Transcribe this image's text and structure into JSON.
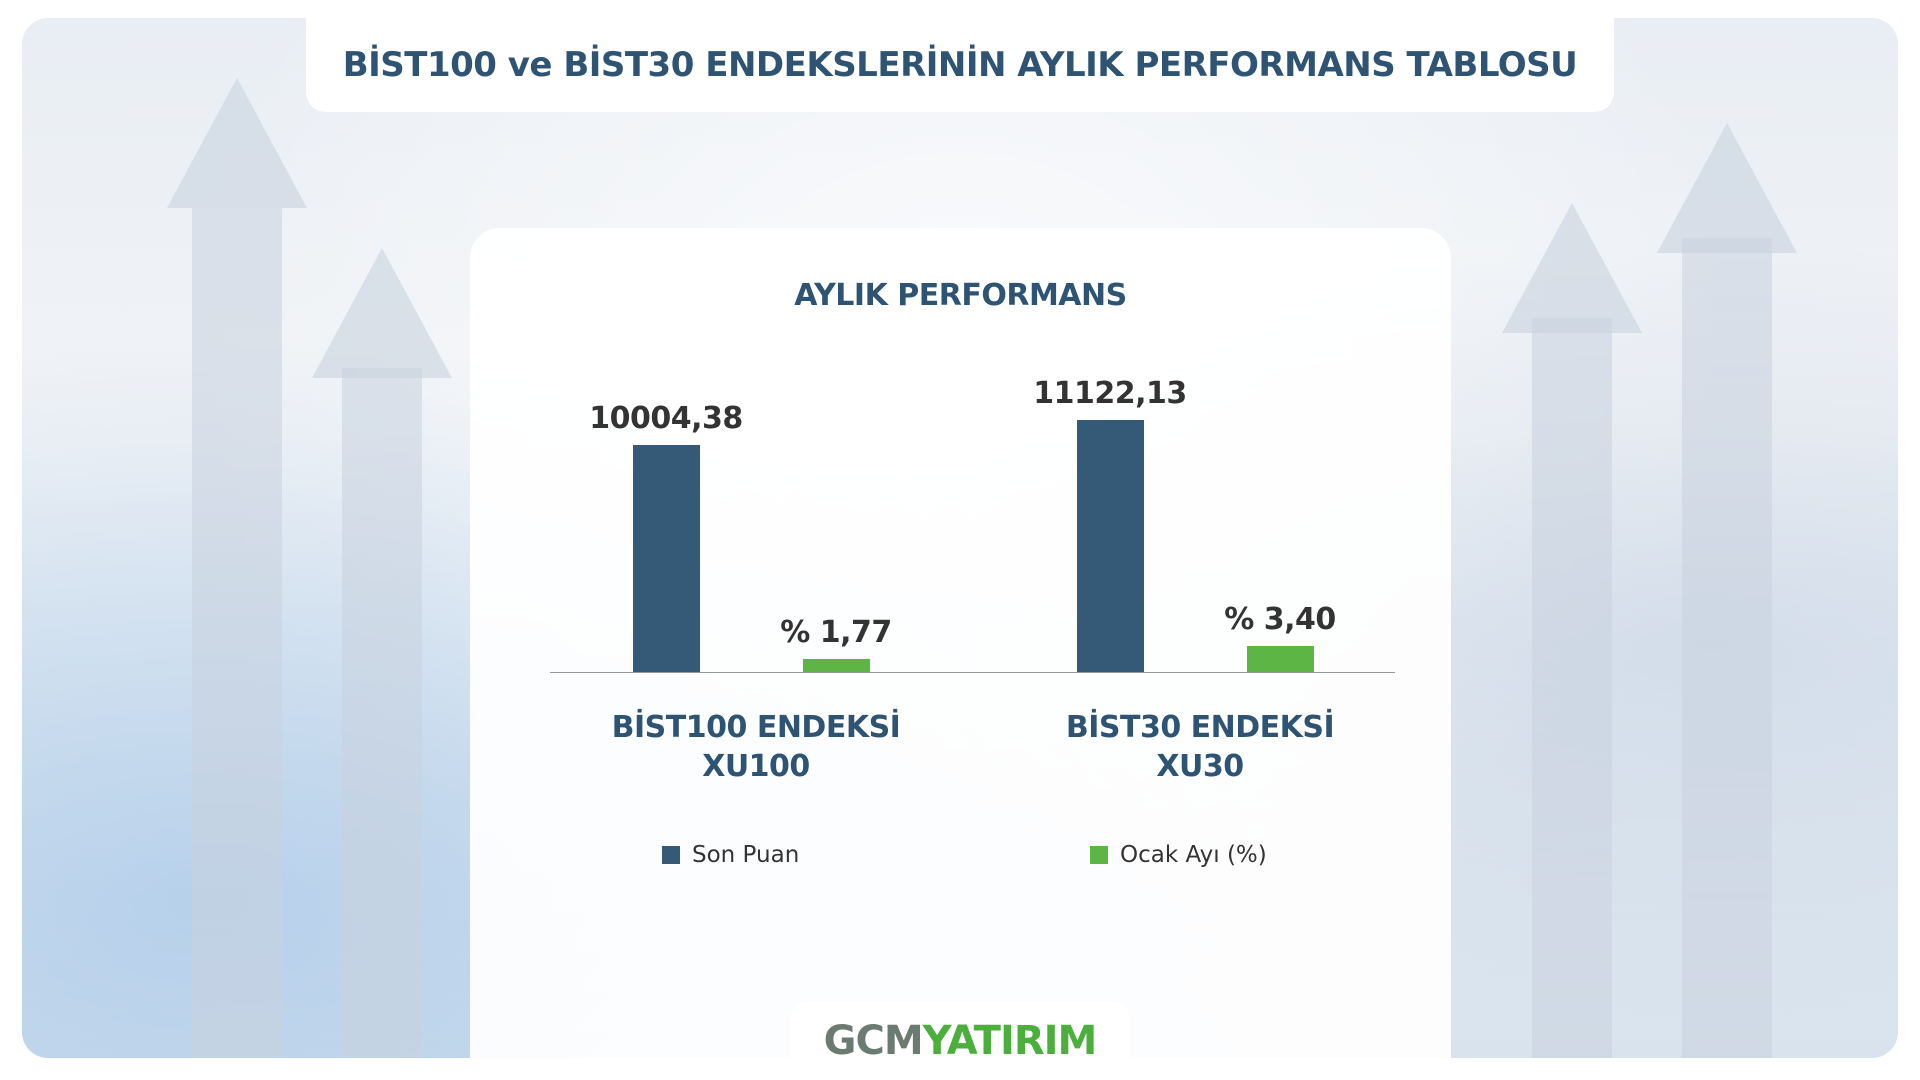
{
  "header": {
    "title": "BİST100 ve BİST30 ENDEKSLERİNİN AYLIK PERFORMANS TABLOSU"
  },
  "chart_data": {
    "type": "bar",
    "title": "AYLIK PERFORMANS",
    "categories": [
      "BİST100 ENDEKSİ\nXU100",
      "BİST30 ENDEKSİ\nXU30"
    ],
    "series": [
      {
        "name": "Son Puan",
        "color": "#355a78",
        "values": [
          10004.38,
          11122.13
        ],
        "value_labels": [
          "10004,38",
          "11122,13"
        ]
      },
      {
        "name": "Ocak Ayı (%)",
        "color": "#5cb545",
        "axis": "y2",
        "values": [
          1.77,
          3.4
        ],
        "value_labels": [
          "% 1,77",
          "% 3,40"
        ]
      }
    ],
    "ylim": [
      0,
      12000
    ],
    "y2lim": [
      0,
      36
    ],
    "grid": false,
    "legend": "bottom"
  },
  "logo": {
    "left": "GCM",
    "right": "YATIRIM"
  }
}
